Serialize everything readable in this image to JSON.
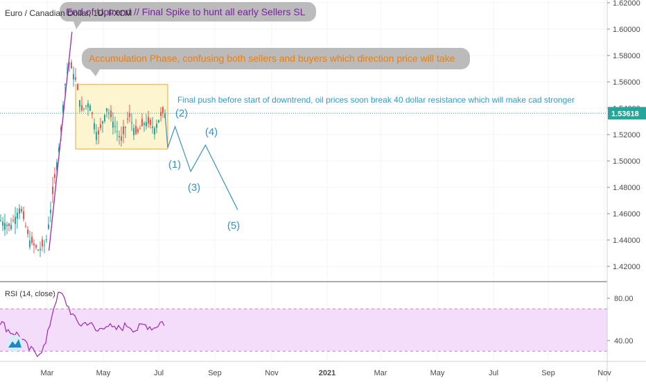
{
  "symbol": {
    "label": "Euro / Canadian Dollar, 1D, FXCM"
  },
  "price_axis": {
    "ticks": [
      "1.62000",
      "1.60000",
      "1.58000",
      "1.56000",
      "1.54000",
      "1.52000",
      "1.50000",
      "1.48000",
      "1.46000",
      "1.44000",
      "1.42000"
    ],
    "current_price": "1.53618",
    "current_price_color": "#26a69a"
  },
  "rsi_panel": {
    "label": "RSI (14, close)",
    "ticks": [
      "80.00",
      "40.00"
    ],
    "band_upper": 70,
    "band_lower": 30,
    "band_color": "#f3ddfb",
    "line_color": "#9c27b0"
  },
  "time_axis": {
    "labels": [
      "Mar",
      "May",
      "Jul",
      "Sep",
      "Nov",
      "2021",
      "Mar",
      "May",
      "Jul",
      "Sep",
      "Nov"
    ]
  },
  "annotations": {
    "callout_top": "End of Uptrend // Final Spike to hunt all early Sellers SL",
    "callout_accumulation": "Accumulation Phase, confusing both sellers and buyers which direction price will take",
    "note_downtrend": "Final push before start of downtrend, oil prices soon break 40 dollar resistance which will make cad stronger",
    "waves": [
      "(1)",
      "(2)",
      "(3)",
      "(4)",
      "(5)"
    ]
  },
  "colors": {
    "up_candle": "#26a69a",
    "down_candle": "#ef5350",
    "trendline": "#9c27b0",
    "accumulation_box_fill": "#fdf3c7",
    "accumulation_box_border": "#f2a71c",
    "wave_color": "#3a90c5",
    "callout_fill": "#b4b4b4",
    "callout_text": "#7b1fa2",
    "callout_text_2": "#f57c00",
    "note_text": "#2e9bd6"
  },
  "chart_data": {
    "type": "line",
    "title": "Euro / Canadian Dollar, 1D, FXCM",
    "ylim": [
      1.41,
      1.625
    ],
    "x": [
      "2020-01-02",
      "2020-01-10",
      "2020-01-20",
      "2020-01-31",
      "2020-02-10",
      "2020-02-20",
      "2020-02-28",
      "2020-03-05",
      "2020-03-10",
      "2020-03-15",
      "2020-03-19",
      "2020-03-24",
      "2020-03-31",
      "2020-04-07",
      "2020-04-15",
      "2020-04-24",
      "2020-05-04",
      "2020-05-12",
      "2020-05-20",
      "2020-05-28",
      "2020-06-05",
      "2020-06-15",
      "2020-06-25",
      "2020-07-03",
      "2020-07-07"
    ],
    "series": [
      {
        "name": "",
        "values": [
          1.452,
          1.455,
          1.45,
          1.465,
          1.44,
          1.432,
          1.438,
          1.468,
          1.495,
          1.52,
          1.555,
          1.575,
          1.562,
          1.538,
          1.545,
          1.518,
          1.54,
          1.528,
          1.515,
          1.535,
          1.52,
          1.53,
          1.525,
          1.536,
          1.536
        ]
      },
      {
        "name": "RSI (14, close)",
        "values": [
          52,
          58,
          49,
          45,
          32,
          28,
          35,
          60,
          78,
          85,
          80,
          72,
          60,
          55,
          58,
          48,
          56,
          50,
          52,
          55,
          50,
          55,
          52,
          58,
          56
        ]
      }
    ],
    "wave_projection": {
      "labels": [
        "(1)",
        "(2)",
        "(3)",
        "(4)",
        "(5)"
      ],
      "x": [
        "2020-07-12",
        "2020-07-18",
        "2020-08-04",
        "2020-08-20",
        "2020-09-24"
      ],
      "y": [
        1.51,
        1.526,
        1.492,
        1.512,
        1.463
      ]
    },
    "accumulation_range": {
      "x": [
        "2020-04-01",
        "2020-07-10"
      ],
      "y": [
        1.509,
        1.558
      ]
    },
    "rsi_ylim": [
      20,
      95
    ],
    "rsi_levels": [
      70,
      30
    ]
  }
}
